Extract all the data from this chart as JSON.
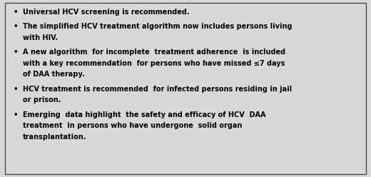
{
  "background_color": "#d8d8d8",
  "border_color": "#4a4a4a",
  "text_color": "#000000",
  "bullet_char": "•",
  "font_size": 7.0,
  "bullet_items": [
    [
      "Universal HCV screening is recommended."
    ],
    [
      "The simplified HCV treatment algorithm now includes persons living",
      "with HIV."
    ],
    [
      "A new algorithm  for incomplete  treatment adherence  is included",
      "with a key recommendation  for persons who have missed ≤7 days",
      "of DAA therapy."
    ],
    [
      "HCV treatment is recommended  for infected persons residing in jail",
      "or prison."
    ],
    [
      "Emerging  data highlight  the safety and efficacy of HCV  DAA",
      "treatment  in persons who have undergone  solid organ",
      "transplantation."
    ]
  ],
  "figsize": [
    5.2,
    2.48
  ],
  "dpi": 100
}
